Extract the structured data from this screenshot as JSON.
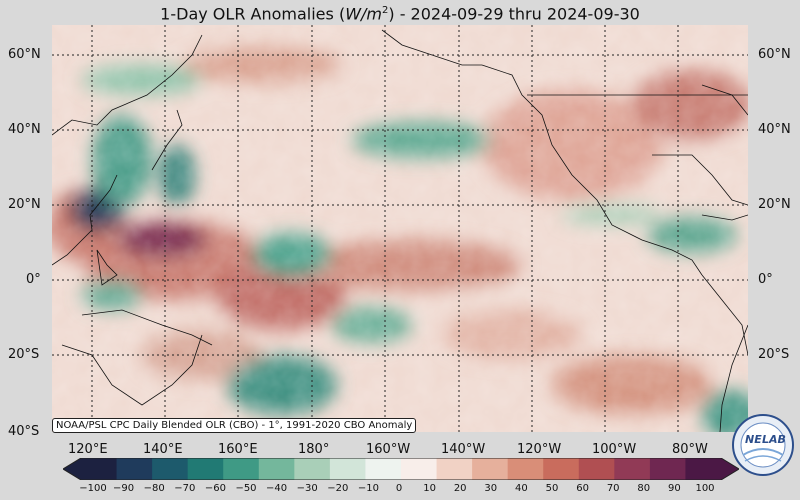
{
  "title_prefix": "1-Day OLR Anomalies (",
  "title_unit_main": "W/m",
  "title_unit_sup": "2",
  "title_suffix": ") - 2024-09-29 thru 2024-09-30",
  "lat_labels": [
    "60°N",
    "40°N",
    "20°N",
    "0°",
    "20°S",
    "40°S"
  ],
  "lon_labels": [
    "120°E",
    "140°E",
    "160°E",
    "180°",
    "160°W",
    "140°W",
    "120°W",
    "100°W",
    "80°W"
  ],
  "credit": "NOAA/PSL CPC Daily Blended OLR (CBO) - 1°, 1991-2020 CBO Anomaly",
  "colorbar": {
    "ticks": [
      "−100",
      "−90",
      "−80",
      "−70",
      "−60",
      "−50",
      "−40",
      "−30",
      "−20",
      "−10",
      "0",
      "10",
      "20",
      "30",
      "40",
      "50",
      "60",
      "70",
      "80",
      "90",
      "100"
    ],
    "colors": [
      "#1c2140",
      "#1f3b5c",
      "#1d5a6c",
      "#217a74",
      "#3f9a85",
      "#74b79c",
      "#a9cfb8",
      "#d2e5d9",
      "#eef3ef",
      "#f8eeea",
      "#f1d2c5",
      "#e6b09c",
      "#d98e78",
      "#c96c5d",
      "#b04f52",
      "#913a56",
      "#6f2751",
      "#4b1845"
    ]
  },
  "logo": {
    "text_ne": "NE",
    "text_lab": "LAB"
  }
}
